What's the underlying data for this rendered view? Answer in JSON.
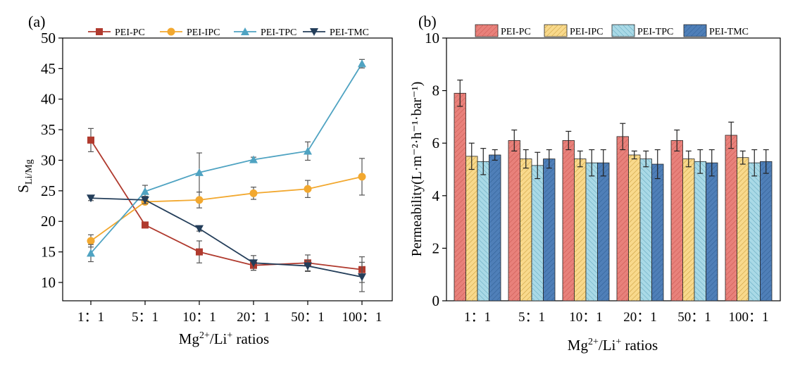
{
  "colors": {
    "PEI-PC": "#b03a2e",
    "PEI-IPC": "#f2a82f",
    "PEI-TPC": "#4fa3c2",
    "PEI-TMC": "#243e5a",
    "bar_PEI-PC": "#e8817b",
    "bar_PEI-IPC": "#f8d98c",
    "bar_PEI-TPC": "#a9d9e6",
    "bar_PEI-TMC": "#4f7fb8"
  },
  "chart_data": [
    {
      "panel_label": "(a)",
      "type": "line",
      "categories": [
        "1：1",
        "5：1",
        "10：1",
        "20：1",
        "50：1",
        "100：1"
      ],
      "xlabel_base": "Mg",
      "xlabel_sup1": "2+",
      "xlabel_mid": "/Li",
      "xlabel_sup2": "+",
      "xlabel_tail": " ratios",
      "ylabel_main": "S",
      "ylabel_sub": "Li/Mg",
      "ylim": [
        7,
        50
      ],
      "yticks": [
        10,
        15,
        20,
        25,
        30,
        35,
        40,
        45,
        50
      ],
      "legend_position": "top",
      "series": [
        {
          "name": "PEI-PC",
          "marker": "square",
          "values": [
            33.3,
            19.4,
            15.0,
            12.8,
            13.2,
            12.1
          ],
          "errors": [
            1.9,
            0.4,
            1.8,
            0.8,
            1.3,
            2.1
          ]
        },
        {
          "name": "PEI-IPC",
          "marker": "circle",
          "values": [
            16.8,
            23.2,
            23.5,
            24.6,
            25.3,
            27.3
          ],
          "errors": [
            1.0,
            0.4,
            1.3,
            1.0,
            1.4,
            3.0
          ]
        },
        {
          "name": "PEI-TPC",
          "marker": "triangle-up",
          "values": [
            14.8,
            24.9,
            28.0,
            30.1,
            31.5,
            45.8
          ],
          "errors": [
            1.4,
            1.0,
            3.2,
            0.4,
            1.5,
            0.7
          ]
        },
        {
          "name": "PEI-TMC",
          "marker": "triangle-down",
          "values": [
            23.8,
            23.5,
            18.8,
            13.2,
            12.7,
            10.9
          ],
          "errors": [
            0.4,
            0.6,
            0.4,
            1.2,
            0.9,
            2.4
          ]
        }
      ]
    },
    {
      "panel_label": "(b)",
      "type": "bar",
      "categories": [
        "1：1",
        "5：1",
        "10：1",
        "20：1",
        "50：1",
        "100：1"
      ],
      "xlabel_base": "Mg",
      "xlabel_sup1": "2+",
      "xlabel_mid": "/Li",
      "xlabel_sup2": "+",
      "xlabel_tail": " ratios",
      "ylabel": "Permeability(L·m⁻²·h⁻¹·bar⁻¹)",
      "ylim": [
        0,
        10
      ],
      "yticks": [
        0,
        2,
        4,
        6,
        8,
        10
      ],
      "legend_position": "top",
      "series": [
        {
          "name": "PEI-PC",
          "values": [
            7.9,
            6.1,
            6.1,
            6.25,
            6.1,
            6.3
          ],
          "errors": [
            0.5,
            0.4,
            0.35,
            0.5,
            0.4,
            0.5
          ]
        },
        {
          "name": "PEI-IPC",
          "values": [
            5.5,
            5.4,
            5.4,
            5.55,
            5.4,
            5.45
          ],
          "errors": [
            0.5,
            0.35,
            0.3,
            0.15,
            0.3,
            0.25
          ]
        },
        {
          "name": "PEI-TPC",
          "values": [
            5.3,
            5.15,
            5.25,
            5.4,
            5.3,
            5.25
          ],
          "errors": [
            0.5,
            0.5,
            0.5,
            0.3,
            0.45,
            0.5
          ]
        },
        {
          "name": "PEI-TMC",
          "values": [
            5.55,
            5.4,
            5.25,
            5.2,
            5.25,
            5.3
          ],
          "errors": [
            0.2,
            0.35,
            0.5,
            0.55,
            0.5,
            0.45
          ]
        }
      ]
    }
  ]
}
